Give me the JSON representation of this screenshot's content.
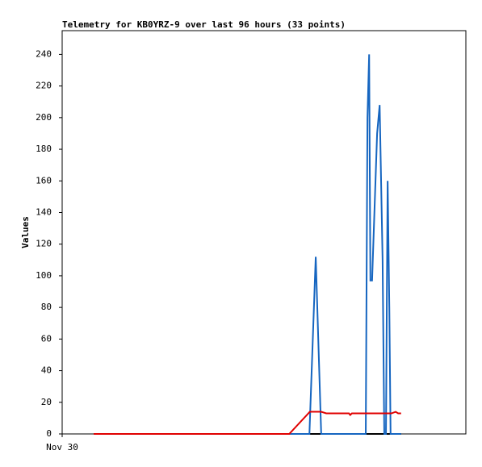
{
  "chart_data": {
    "type": "line",
    "title": "Telemetry for KB0YRZ-9 over last 96 hours (33 points)",
    "y_label": "Values",
    "xlim": [
      0,
      96
    ],
    "xticks": [
      {
        "value": 0,
        "label": "Nov 30"
      }
    ],
    "ylim": [
      0,
      255
    ],
    "yticks": [
      0,
      20,
      40,
      60,
      80,
      100,
      120,
      140,
      160,
      180,
      200,
      220,
      240
    ],
    "grid": false,
    "series": [
      {
        "color": "#000000",
        "x": [
          7.5,
          80.6
        ],
        "values": [
          0,
          0
        ]
      },
      {
        "color": "#1565c0",
        "x": [
          7.5,
          58.8,
          60.3,
          61.6,
          72.2,
          72.6,
          73.0,
          73.3,
          73.7,
          74.9,
          75.5,
          76.2,
          76.6,
          77.0,
          77.4,
          77.8,
          78.1,
          80.6
        ],
        "values": [
          0,
          0,
          112,
          0,
          0,
          200,
          240,
          97,
          97,
          190,
          208,
          110,
          0,
          0,
          160,
          80,
          0,
          0
        ]
      },
      {
        "color": "#e00000",
        "x": [
          7.5,
          54.0,
          58.9,
          61.6,
          62.8,
          68.2,
          68.5,
          68.9,
          78.3,
          79.3,
          79.9,
          80.6
        ],
        "values": [
          0,
          0,
          14,
          14,
          13,
          13,
          12,
          13,
          13,
          14,
          13,
          13
        ]
      }
    ]
  }
}
